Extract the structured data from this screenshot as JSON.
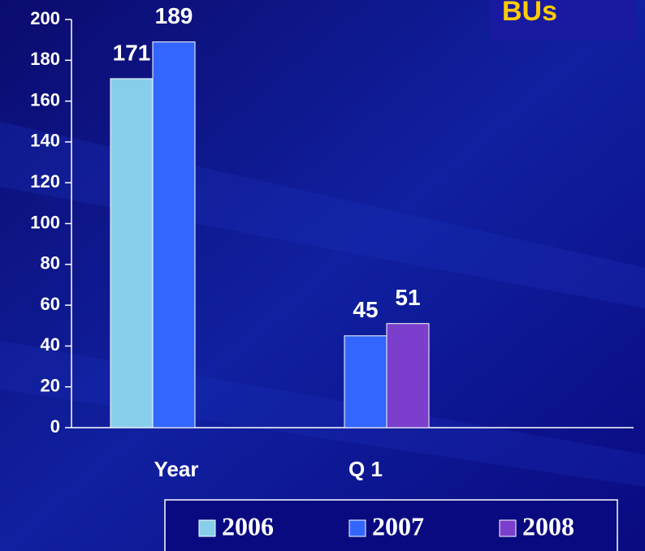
{
  "chart_data": {
    "type": "bar",
    "title": "BUs",
    "categories": [
      "Year",
      "Q 1"
    ],
    "series": [
      {
        "name": "2006",
        "color": "#87ceeb",
        "values": [
          171,
          null
        ]
      },
      {
        "name": "2007",
        "color": "#3366ff",
        "values": [
          189,
          45
        ]
      },
      {
        "name": "2008",
        "color": "#7b3fcc",
        "values": [
          null,
          51
        ]
      }
    ],
    "ylim": [
      0,
      200
    ],
    "yticks": [
      0,
      20,
      40,
      60,
      80,
      100,
      120,
      140,
      160,
      180,
      200
    ],
    "legend": "bottom"
  }
}
